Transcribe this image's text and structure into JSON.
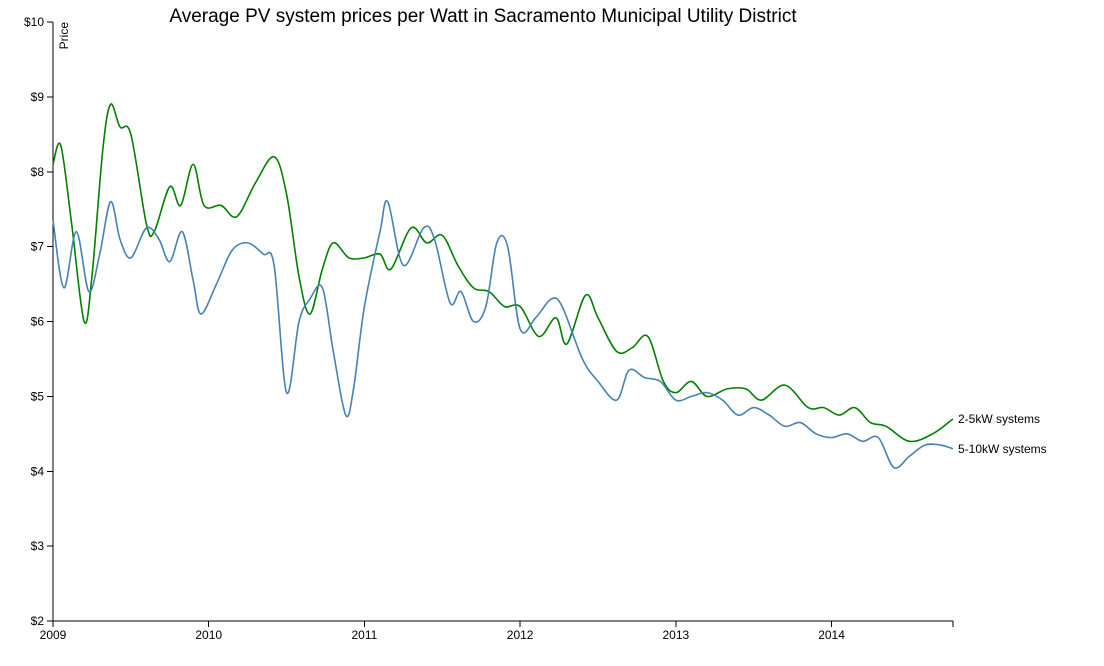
{
  "chart_data": {
    "type": "line",
    "title": "Average PV system prices per Watt in Sacramento Municipal Utility District",
    "ylabel": "Price",
    "xlabel": "",
    "ylim": [
      2,
      10
    ],
    "xlim": [
      2009.0,
      2014.78
    ],
    "x_ticks": [
      "2009",
      "2010",
      "2011",
      "2012",
      "2013",
      "2014"
    ],
    "y_ticks": [
      "$2",
      "$3",
      "$4",
      "$5",
      "$6",
      "$7",
      "$8",
      "$9",
      "$10"
    ],
    "grid": false,
    "series": [
      {
        "name": "2-5kW systems",
        "color": "#008000",
        "points": [
          [
            2009.0,
            8.1
          ],
          [
            2009.05,
            8.35
          ],
          [
            2009.12,
            7.3
          ],
          [
            2009.2,
            6.0
          ],
          [
            2009.25,
            6.6
          ],
          [
            2009.32,
            8.3
          ],
          [
            2009.37,
            8.9
          ],
          [
            2009.43,
            8.6
          ],
          [
            2009.5,
            8.5
          ],
          [
            2009.6,
            7.3
          ],
          [
            2009.65,
            7.2
          ],
          [
            2009.75,
            7.8
          ],
          [
            2009.82,
            7.55
          ],
          [
            2009.9,
            8.1
          ],
          [
            2009.97,
            7.55
          ],
          [
            2010.08,
            7.55
          ],
          [
            2010.18,
            7.4
          ],
          [
            2010.3,
            7.85
          ],
          [
            2010.42,
            8.2
          ],
          [
            2010.5,
            7.7
          ],
          [
            2010.58,
            6.6
          ],
          [
            2010.65,
            6.1
          ],
          [
            2010.73,
            6.7
          ],
          [
            2010.8,
            7.05
          ],
          [
            2010.9,
            6.85
          ],
          [
            2011.0,
            6.85
          ],
          [
            2011.1,
            6.9
          ],
          [
            2011.17,
            6.7
          ],
          [
            2011.3,
            7.25
          ],
          [
            2011.4,
            7.05
          ],
          [
            2011.5,
            7.15
          ],
          [
            2011.6,
            6.75
          ],
          [
            2011.7,
            6.45
          ],
          [
            2011.8,
            6.4
          ],
          [
            2011.9,
            6.2
          ],
          [
            2012.0,
            6.2
          ],
          [
            2012.12,
            5.8
          ],
          [
            2012.23,
            6.05
          ],
          [
            2012.3,
            5.7
          ],
          [
            2012.42,
            6.35
          ],
          [
            2012.5,
            6.05
          ],
          [
            2012.62,
            5.6
          ],
          [
            2012.72,
            5.65
          ],
          [
            2012.82,
            5.8
          ],
          [
            2012.92,
            5.2
          ],
          [
            2013.0,
            5.05
          ],
          [
            2013.1,
            5.2
          ],
          [
            2013.2,
            5.0
          ],
          [
            2013.33,
            5.1
          ],
          [
            2013.45,
            5.1
          ],
          [
            2013.55,
            4.95
          ],
          [
            2013.7,
            5.15
          ],
          [
            2013.85,
            4.85
          ],
          [
            2013.95,
            4.85
          ],
          [
            2014.05,
            4.75
          ],
          [
            2014.15,
            4.85
          ],
          [
            2014.25,
            4.65
          ],
          [
            2014.35,
            4.6
          ],
          [
            2014.5,
            4.4
          ],
          [
            2014.65,
            4.5
          ],
          [
            2014.78,
            4.7
          ]
        ]
      },
      {
        "name": "5-10kW systems",
        "color": "#4682b4",
        "points": [
          [
            2009.0,
            7.35
          ],
          [
            2009.07,
            6.45
          ],
          [
            2009.15,
            7.2
          ],
          [
            2009.23,
            6.4
          ],
          [
            2009.3,
            6.9
          ],
          [
            2009.37,
            7.6
          ],
          [
            2009.43,
            7.1
          ],
          [
            2009.5,
            6.85
          ],
          [
            2009.6,
            7.25
          ],
          [
            2009.68,
            7.1
          ],
          [
            2009.75,
            6.8
          ],
          [
            2009.83,
            7.2
          ],
          [
            2009.9,
            6.55
          ],
          [
            2009.95,
            6.1
          ],
          [
            2010.05,
            6.5
          ],
          [
            2010.15,
            6.95
          ],
          [
            2010.25,
            7.05
          ],
          [
            2010.35,
            6.9
          ],
          [
            2010.42,
            6.75
          ],
          [
            2010.5,
            5.05
          ],
          [
            2010.58,
            6.0
          ],
          [
            2010.65,
            6.3
          ],
          [
            2010.73,
            6.45
          ],
          [
            2010.8,
            5.6
          ],
          [
            2010.88,
            4.75
          ],
          [
            2010.93,
            5.1
          ],
          [
            2011.0,
            6.2
          ],
          [
            2011.1,
            7.2
          ],
          [
            2011.15,
            7.6
          ],
          [
            2011.25,
            6.75
          ],
          [
            2011.38,
            7.25
          ],
          [
            2011.45,
            7.1
          ],
          [
            2011.55,
            6.25
          ],
          [
            2011.62,
            6.4
          ],
          [
            2011.7,
            6.0
          ],
          [
            2011.78,
            6.2
          ],
          [
            2011.85,
            7.05
          ],
          [
            2011.92,
            7.0
          ],
          [
            2012.0,
            5.9
          ],
          [
            2012.1,
            6.05
          ],
          [
            2012.2,
            6.3
          ],
          [
            2012.27,
            6.2
          ],
          [
            2012.4,
            5.5
          ],
          [
            2012.5,
            5.2
          ],
          [
            2012.62,
            4.95
          ],
          [
            2012.7,
            5.35
          ],
          [
            2012.8,
            5.25
          ],
          [
            2012.9,
            5.2
          ],
          [
            2013.0,
            4.95
          ],
          [
            2013.1,
            5.0
          ],
          [
            2013.2,
            5.05
          ],
          [
            2013.3,
            4.95
          ],
          [
            2013.4,
            4.75
          ],
          [
            2013.5,
            4.85
          ],
          [
            2013.6,
            4.75
          ],
          [
            2013.7,
            4.6
          ],
          [
            2013.8,
            4.65
          ],
          [
            2013.9,
            4.5
          ],
          [
            2014.0,
            4.45
          ],
          [
            2014.1,
            4.5
          ],
          [
            2014.2,
            4.4
          ],
          [
            2014.3,
            4.45
          ],
          [
            2014.4,
            4.05
          ],
          [
            2014.5,
            4.2
          ],
          [
            2014.6,
            4.35
          ],
          [
            2014.7,
            4.35
          ],
          [
            2014.78,
            4.3
          ]
        ]
      }
    ]
  }
}
